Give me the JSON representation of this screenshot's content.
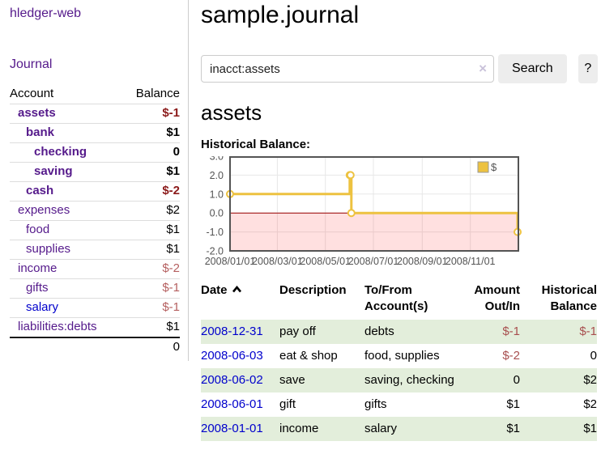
{
  "brand": "hledger-web",
  "sidebar": {
    "journal_link": "Journal",
    "account_header": "Account",
    "balance_header": "Balance",
    "accounts": [
      {
        "name": "assets",
        "balance": "$-1"
      },
      {
        "name": "bank",
        "balance": "$1"
      },
      {
        "name": "checking",
        "balance": "0"
      },
      {
        "name": "saving",
        "balance": "$1"
      },
      {
        "name": "cash",
        "balance": "$-2"
      },
      {
        "name": "expenses",
        "balance": "$2"
      },
      {
        "name": "food",
        "balance": "$1"
      },
      {
        "name": "supplies",
        "balance": "$1"
      },
      {
        "name": "income",
        "balance": "$-2"
      },
      {
        "name": "gifts",
        "balance": "$-1"
      },
      {
        "name": "salary",
        "balance": "$-1"
      },
      {
        "name": "liabilities:debts",
        "balance": "$1"
      }
    ],
    "total_balance": "0"
  },
  "header": {
    "title": "sample.journal"
  },
  "search": {
    "value": "inacct:assets",
    "clear_icon": "×",
    "search_button": "Search",
    "help_button": "?"
  },
  "account_view": {
    "heading": "assets",
    "chart_title": "Historical Balance:"
  },
  "chart_data": {
    "type": "line",
    "step": true,
    "title": "Historical Balance",
    "x_range": [
      "2008-01-01",
      "2009-01-01"
    ],
    "ylim": [
      -2,
      3
    ],
    "yticks": [
      {
        "v": 3,
        "label": "3.0"
      },
      {
        "v": 2,
        "label": "2.0"
      },
      {
        "v": 1,
        "label": "1.0"
      },
      {
        "v": 0,
        "label": "0.0"
      },
      {
        "v": -1,
        "label": "-1.0"
      },
      {
        "v": -2,
        "label": "-2.0"
      }
    ],
    "xticks": [
      {
        "date": "2008-01-01",
        "label": "2008/01/01"
      },
      {
        "date": "2008-03-01",
        "label": "2008/03/01"
      },
      {
        "date": "2008-05-01",
        "label": "2008/05/01"
      },
      {
        "date": "2008-07-01",
        "label": "2008/07/01"
      },
      {
        "date": "2008-09-01",
        "label": "2008/09/01"
      },
      {
        "date": "2008-11-01",
        "label": "2008/11/01"
      }
    ],
    "series": [
      {
        "name": "$",
        "color": "#edc240",
        "points": [
          [
            "2008-01-01",
            1
          ],
          [
            "2008-06-01",
            2
          ],
          [
            "2008-06-02",
            2
          ],
          [
            "2008-06-03",
            0
          ],
          [
            "2008-12-31",
            -1
          ]
        ]
      }
    ],
    "legend_position": "top-right",
    "grid": true,
    "zero_line_color": "#990000",
    "negative_region_color": "#ffd9d9",
    "border_color": "#545454"
  },
  "register": {
    "columns": {
      "date": "Date",
      "description": "Description",
      "accounts": "To/From Account(s)",
      "amount": "Amount Out/In",
      "balance": "Historical Balance"
    },
    "rows": [
      {
        "date": "2008-12-31",
        "description": "pay off",
        "accounts": "debts",
        "amount": "$-1",
        "balance": "$-1"
      },
      {
        "date": "2008-06-03",
        "description": "eat & shop",
        "accounts": "food, supplies",
        "amount": "$-2",
        "balance": "0"
      },
      {
        "date": "2008-06-02",
        "description": "save",
        "accounts": "saving, checking",
        "amount": "0",
        "balance": "$2"
      },
      {
        "date": "2008-06-01",
        "description": "gift",
        "accounts": "gifts",
        "amount": "$1",
        "balance": "$2"
      },
      {
        "date": "2008-01-01",
        "description": "income",
        "accounts": "salary",
        "amount": "$1",
        "balance": "$1"
      }
    ]
  }
}
